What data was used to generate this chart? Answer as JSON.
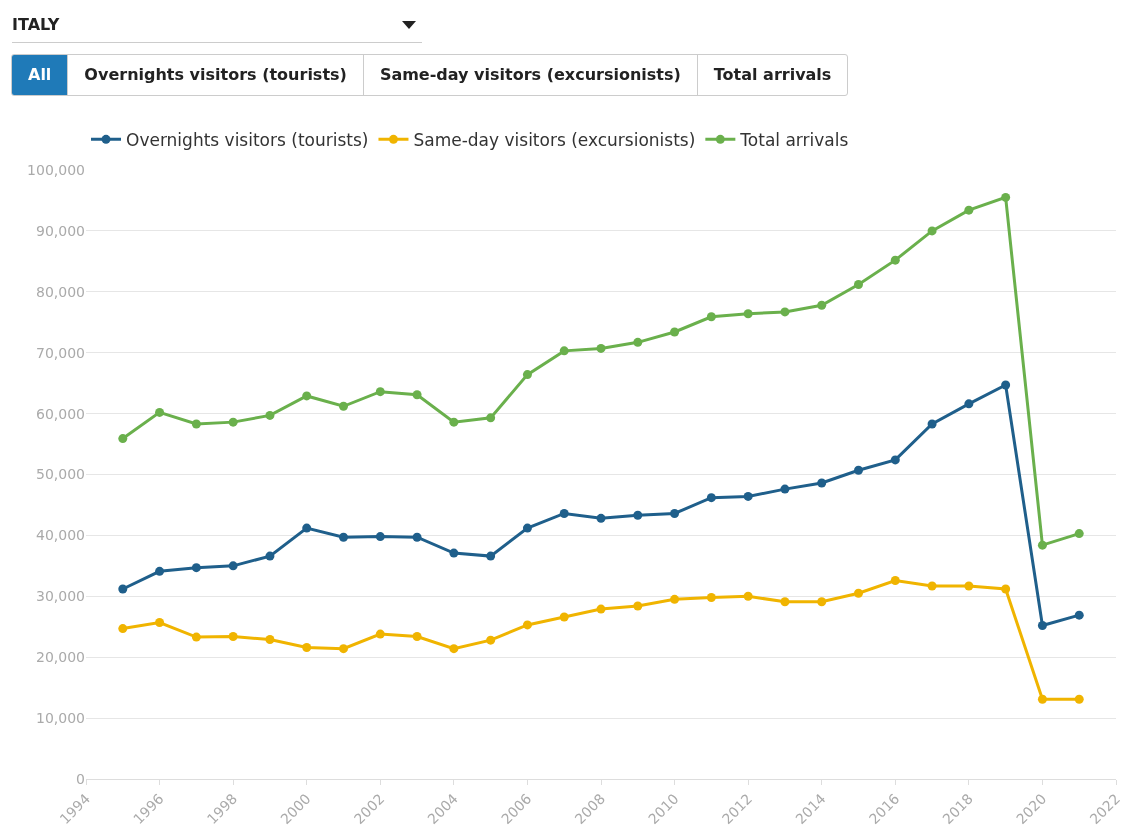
{
  "chart_data": {
    "type": "line",
    "annotations": [
      "ITALY",
      "All",
      "Overnights visitors (tourists)",
      "Same-day visitors (excursionists)",
      "Total arrivals"
    ],
    "x": [
      1995,
      1996,
      1997,
      1998,
      1999,
      2000,
      2001,
      2002,
      2003,
      2004,
      2005,
      2006,
      2007,
      2008,
      2009,
      2010,
      2011,
      2012,
      2013,
      2014,
      2015,
      2016,
      2017,
      2018,
      2019,
      2020,
      2021
    ],
    "series": [
      {
        "name": "Overnights visitors (tourists)",
        "color": "#1f5f8b",
        "values": [
          31200,
          34100,
          34700,
          35000,
          36600,
          41200,
          39700,
          39800,
          39700,
          37100,
          36600,
          41200,
          43600,
          42800,
          43300,
          43600,
          46200,
          46400,
          47600,
          48600,
          50700,
          52400,
          58300,
          61600,
          64700,
          25200,
          26900
        ]
      },
      {
        "name": "Same-day visitors (excursionists)",
        "color": "#f0b400",
        "values": [
          24700,
          25700,
          23300,
          23400,
          22900,
          21600,
          21400,
          23800,
          23400,
          21400,
          22800,
          25300,
          26600,
          27900,
          28400,
          29500,
          29800,
          30000,
          29100,
          29100,
          30500,
          32600,
          31700,
          31700,
          31200,
          13100,
          13100
        ]
      },
      {
        "name": "Total arrivals",
        "color": "#6ab04c",
        "values": [
          55900,
          60200,
          58300,
          58600,
          59700,
          62900,
          61200,
          63600,
          63100,
          58600,
          59300,
          66400,
          70300,
          70700,
          71700,
          73400,
          75900,
          76400,
          76700,
          77800,
          81200,
          85200,
          90000,
          93400,
          95500,
          38400,
          40300
        ]
      }
    ],
    "xlim": [
      1994,
      2022
    ],
    "xticks": [
      1994,
      1996,
      1998,
      2000,
      2002,
      2004,
      2006,
      2008,
      2010,
      2012,
      2014,
      2016,
      2018,
      2020,
      2022
    ],
    "ylim": [
      0,
      100000
    ],
    "yticks": [
      {
        "value": 0,
        "label": "0"
      },
      {
        "value": 10000,
        "label": "10,000"
      },
      {
        "value": 20000,
        "label": "20,000"
      },
      {
        "value": 30000,
        "label": "30,000"
      },
      {
        "value": 40000,
        "label": "40,000"
      },
      {
        "value": 50000,
        "label": "50,000"
      },
      {
        "value": 60000,
        "label": "60,000"
      },
      {
        "value": 70000,
        "label": "70,000"
      },
      {
        "value": 80000,
        "label": "80,000"
      },
      {
        "value": 90000,
        "label": "90,000"
      },
      {
        "value": 100000,
        "label": "100,000"
      }
    ],
    "grid": "y",
    "legend": "top left",
    "marker": "circle",
    "line_style": "solid"
  }
}
